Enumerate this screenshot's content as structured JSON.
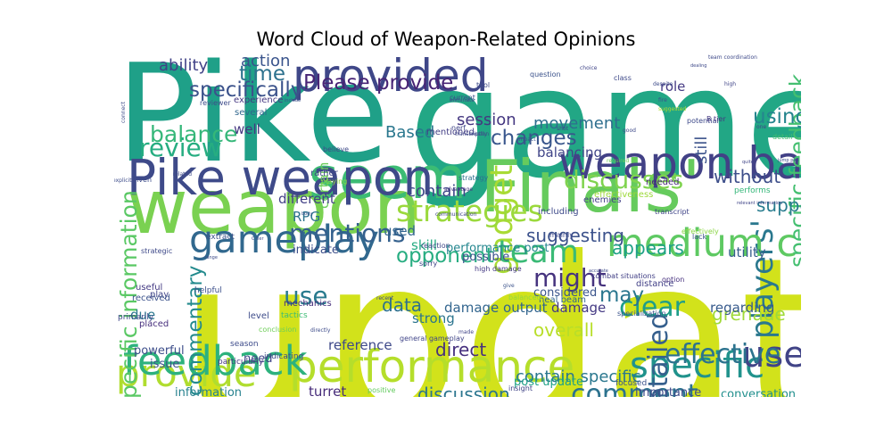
{
  "chart_data": {
    "type": "wordcloud",
    "title": "Word Cloud of Weapon-Related Opinions",
    "words": [
      {
        "text": "update",
        "weight": 1.0,
        "color": "#d2e21b"
      },
      {
        "text": "game",
        "weight": 0.93,
        "color": "#22a785"
      },
      {
        "text": "Pike",
        "weight": 0.86,
        "color": "#1fa088"
      },
      {
        "text": "weapon",
        "weight": 0.6,
        "color": "#7ad151"
      },
      {
        "text": "Finals'",
        "weight": 0.52,
        "color": "#66cb5d"
      },
      {
        "text": "performance",
        "weight": 0.5,
        "color": "#b5de2b"
      },
      {
        "text": "provide",
        "weight": 0.38,
        "color": "#b0dd2f"
      },
      {
        "text": "specific",
        "weight": 0.36,
        "color": "#20928c"
      },
      {
        "text": "players'",
        "weight": 0.3,
        "color": "#2a788e"
      },
      {
        "text": "seem",
        "weight": 0.26,
        "color": "#3cbc74"
      },
      {
        "text": "Pike weapon",
        "weight": 0.22,
        "color": "#3e4a89"
      },
      {
        "text": "weapon balancing",
        "weight": 0.2,
        "color": "#424186"
      },
      {
        "text": "provided",
        "weight": 0.2,
        "color": "#3f4788"
      },
      {
        "text": "feedback",
        "weight": 0.18,
        "color": "#2db27d"
      },
      {
        "text": "gameplay",
        "weight": 0.17,
        "color": "#31688e"
      },
      {
        "text": "medium class",
        "weight": 0.17,
        "color": "#5ec962"
      },
      {
        "text": "user",
        "weight": 0.16,
        "color": "#414487"
      },
      {
        "text": "gadget",
        "weight": 0.14,
        "color": "#a8db34"
      },
      {
        "text": "team",
        "weight": 0.14,
        "color": "#3aba76"
      },
      {
        "text": "strategies",
        "weight": 0.13,
        "color": "#9bd93c"
      },
      {
        "text": "comment",
        "weight": 0.12,
        "color": "#2c728e"
      },
      {
        "text": "detailed",
        "weight": 0.12,
        "color": "#355f8d"
      },
      {
        "text": "clear",
        "weight": 0.12,
        "color": "#1f9e89"
      },
      {
        "text": "effective",
        "weight": 0.12,
        "color": "#2c738e"
      },
      {
        "text": "review",
        "weight": 0.11,
        "color": "#26ad81"
      },
      {
        "text": "mentions",
        "weight": 0.11,
        "color": "#34608d"
      },
      {
        "text": "discusses",
        "weight": 0.11,
        "color": "#7fd34e"
      },
      {
        "text": "might",
        "weight": 0.11,
        "color": "#46337e"
      },
      {
        "text": "use",
        "weight": 0.11,
        "color": "#297b8e"
      },
      {
        "text": "balance",
        "weight": 0.1,
        "color": "#35b779"
      },
      {
        "text": "specific information",
        "weight": 0.1,
        "color": "#5ac864"
      },
      {
        "text": "specific feedback",
        "weight": 0.1,
        "color": "#44bf70"
      },
      {
        "text": "commentary",
        "weight": 0.09,
        "color": "#238a8d"
      },
      {
        "text": "Please provide",
        "weight": 0.09,
        "color": "#482475"
      },
      {
        "text": "time",
        "weight": 0.09,
        "color": "#2d718e"
      },
      {
        "text": "specifically",
        "weight": 0.09,
        "color": "#3b528b"
      },
      {
        "text": "changes",
        "weight": 0.09,
        "color": "#39568c"
      },
      {
        "text": "using",
        "weight": 0.09,
        "color": "#25858e"
      },
      {
        "text": "may",
        "weight": 0.09,
        "color": "#2a768e"
      },
      {
        "text": "opponent",
        "weight": 0.09,
        "color": "#27ad81"
      },
      {
        "text": "suggesting",
        "weight": 0.08,
        "color": "#3b518b"
      },
      {
        "text": "appears",
        "weight": 0.08,
        "color": "#1fa187"
      },
      {
        "text": "without",
        "weight": 0.08,
        "color": "#3d4e8a"
      },
      {
        "text": "support",
        "weight": 0.08,
        "color": "#287c8e"
      },
      {
        "text": "grenade",
        "weight": 0.08,
        "color": "#a0da39"
      },
      {
        "text": "overall",
        "weight": 0.08,
        "color": "#b8de29"
      },
      {
        "text": "data",
        "weight": 0.08,
        "color": "#2d708e"
      },
      {
        "text": "direct",
        "weight": 0.08,
        "color": "#46307e"
      },
      {
        "text": "discussion",
        "weight": 0.08,
        "color": "#2b758e"
      },
      {
        "text": "contain",
        "weight": 0.07,
        "color": "#3f4889"
      },
      {
        "text": "contain specific",
        "weight": 0.07,
        "color": "#2a778e"
      },
      {
        "text": "ability",
        "weight": 0.07,
        "color": "#414287"
      },
      {
        "text": "action",
        "weight": 0.07,
        "color": "#3a548c"
      },
      {
        "text": "session",
        "weight": 0.07,
        "color": "#453781"
      },
      {
        "text": "movement",
        "weight": 0.07,
        "color": "#2e6e8e"
      },
      {
        "text": "balancing",
        "weight": 0.06,
        "color": "#404588"
      },
      {
        "text": "role",
        "weight": 0.06,
        "color": "#443983"
      },
      {
        "text": "still",
        "weight": 0.07,
        "color": "#3b528b"
      },
      {
        "text": "Based",
        "weight": 0.07,
        "color": "#2a778e"
      },
      {
        "text": "certain",
        "weight": 0.06,
        "color": "#6ccd5a"
      },
      {
        "text": "well",
        "weight": 0.06,
        "color": "#453781"
      },
      {
        "text": "different",
        "weight": 0.06,
        "color": "#424086"
      },
      {
        "text": "RPG",
        "weight": 0.06,
        "color": "#2c728e"
      },
      {
        "text": "used",
        "weight": 0.06,
        "color": "#32658e"
      },
      {
        "text": "skill",
        "weight": 0.06,
        "color": "#25ab82"
      },
      {
        "text": "indicate",
        "weight": 0.05,
        "color": "#3c4f8a"
      },
      {
        "text": "utility",
        "weight": 0.06,
        "color": "#355e8d"
      },
      {
        "text": "damage",
        "weight": 0.06,
        "color": "#443983"
      },
      {
        "text": "damage output",
        "weight": 0.06,
        "color": "#32658e"
      },
      {
        "text": "strong",
        "weight": 0.06,
        "color": "#2b748e"
      },
      {
        "text": "considered",
        "weight": 0.05,
        "color": "#3a548c"
      },
      {
        "text": "regarding",
        "weight": 0.06,
        "color": "#375a8c"
      },
      {
        "text": "due",
        "weight": 0.06,
        "color": "#2a778e"
      },
      {
        "text": "reference",
        "weight": 0.06,
        "color": "#3e4989"
      },
      {
        "text": "need",
        "weight": 0.05,
        "color": "#404588"
      },
      {
        "text": "suggest",
        "weight": 0.05,
        "color": "#3f4889"
      },
      {
        "text": "turret",
        "weight": 0.06,
        "color": "#472c7a"
      },
      {
        "text": "information",
        "weight": 0.05,
        "color": "#26818e"
      },
      {
        "text": "post update",
        "weight": 0.05,
        "color": "#1fa187"
      },
      {
        "text": "conversation",
        "weight": 0.05,
        "color": "#218f8d"
      },
      {
        "text": "importance",
        "weight": 0.05,
        "color": "#3e4c8a"
      },
      {
        "text": "issue",
        "weight": 0.05,
        "color": "#3b528b"
      },
      {
        "text": "powerful",
        "weight": 0.05,
        "color": "#3d4e8a"
      },
      {
        "text": "placed",
        "weight": 0.04,
        "color": "#472f7d"
      },
      {
        "text": "level",
        "weight": 0.04,
        "color": "#3e4c8a"
      },
      {
        "text": "play",
        "weight": 0.04,
        "color": "#404588"
      },
      {
        "text": "mechanics",
        "weight": 0.04,
        "color": "#462f7c"
      },
      {
        "text": "performance post",
        "weight": 0.05,
        "color": "#24868e"
      },
      {
        "text": "possible",
        "weight": 0.05,
        "color": "#3b528b"
      },
      {
        "text": "mentioned",
        "weight": 0.04,
        "color": "#433e85"
      },
      {
        "text": "rather",
        "weight": 0.04,
        "color": "#3f4788"
      },
      {
        "text": "several",
        "weight": 0.04,
        "color": "#31678e"
      },
      {
        "text": "experience",
        "weight": 0.04,
        "color": "#453781"
      },
      {
        "text": "including",
        "weight": 0.04,
        "color": "#3e4a89"
      },
      {
        "text": "enemies",
        "weight": 0.04,
        "color": "#424086"
      },
      {
        "text": "needed",
        "weight": 0.04,
        "color": "#482878"
      },
      {
        "text": "effectiveness",
        "weight": 0.04,
        "color": "#9dd93b"
      },
      {
        "text": "heal beam",
        "weight": 0.04,
        "color": "#32658e"
      },
      {
        "text": "distance",
        "weight": 0.04,
        "color": "#424086"
      },
      {
        "text": "useful",
        "weight": 0.04,
        "color": "#443a83"
      },
      {
        "text": "received",
        "weight": 0.04,
        "color": "#3b528b"
      },
      {
        "text": "primarily",
        "weight": 0.035,
        "color": "#3e4989"
      },
      {
        "text": "tactics",
        "weight": 0.035,
        "color": "#3dbc74"
      },
      {
        "text": "helpful",
        "weight": 0.035,
        "color": "#3c4f8a"
      },
      {
        "text": "strategic",
        "weight": 0.03,
        "color": "#3e4989"
      },
      {
        "text": "extract",
        "weight": 0.035,
        "color": "#3b528b"
      },
      {
        "text": "season",
        "weight": 0.035,
        "color": "#3e4c8a"
      },
      {
        "text": "positive",
        "weight": 0.03,
        "color": "#63cb5f"
      },
      {
        "text": "particularly",
        "weight": 0.035,
        "color": "#453882"
      },
      {
        "text": "indicating",
        "weight": 0.035,
        "color": "#3e4c8a"
      },
      {
        "text": "general gameplay",
        "weight": 0.03,
        "color": "#404588"
      },
      {
        "text": "insight",
        "weight": 0.03,
        "color": "#414487"
      },
      {
        "text": "focused",
        "weight": 0.035,
        "color": "#3b528b"
      },
      {
        "text": "performs",
        "weight": 0.035,
        "color": "#35b779"
      },
      {
        "text": "effectively",
        "weight": 0.03,
        "color": "#8bd646"
      },
      {
        "text": "transcript",
        "weight": 0.03,
        "color": "#404588"
      },
      {
        "text": "mainly",
        "weight": 0.03,
        "color": "#3e4989"
      },
      {
        "text": "lack",
        "weight": 0.03,
        "color": "#3b528b"
      },
      {
        "text": "reaction",
        "weight": 0.03,
        "color": "#3f4788"
      },
      {
        "text": "communication",
        "weight": 0.025,
        "color": "#404588"
      },
      {
        "text": "strategy",
        "weight": 0.03,
        "color": "#2d718e"
      },
      {
        "text": "believe",
        "weight": 0.03,
        "color": "#3e4a89"
      },
      {
        "text": "playing",
        "weight": 0.03,
        "color": "#8fd744"
      },
      {
        "text": "given",
        "weight": 0.03,
        "color": "#3e4c8a"
      },
      {
        "text": "combat situations",
        "weight": 0.03,
        "color": "#424086"
      },
      {
        "text": "option",
        "weight": 0.03,
        "color": "#46307e"
      },
      {
        "text": "specialization",
        "weight": 0.03,
        "color": "#3b528b"
      },
      {
        "text": "sorry",
        "weight": 0.03,
        "color": "#404588"
      },
      {
        "text": "high damage",
        "weight": 0.03,
        "color": "#443983"
      },
      {
        "text": "balanced",
        "weight": 0.03,
        "color": "#90d743"
      },
      {
        "text": "conclusion",
        "weight": 0.03,
        "color": "#6ece58"
      },
      {
        "text": "directly",
        "weight": 0.025,
        "color": "#3e4c8a"
      },
      {
        "text": "give",
        "weight": 0.025,
        "color": "#3b528b"
      },
      {
        "text": "made",
        "weight": 0.025,
        "color": "#404588"
      },
      {
        "text": "recent",
        "weight": 0.025,
        "color": "#3e4989"
      },
      {
        "text": "advantage",
        "weight": 0.025,
        "color": "#453781"
      },
      {
        "text": "connect",
        "weight": 0.025,
        "color": "#3e4c8a"
      },
      {
        "text": "eliminate",
        "weight": 0.025,
        "color": "#404588"
      },
      {
        "text": "tool",
        "weight": 0.03,
        "color": "#3e4a89"
      },
      {
        "text": "question",
        "weight": 0.03,
        "color": "#3b528b"
      },
      {
        "text": "choice",
        "weight": 0.025,
        "color": "#404588"
      },
      {
        "text": "class",
        "weight": 0.03,
        "color": "#3e4989"
      },
      {
        "text": "suggested",
        "weight": 0.025,
        "color": "#b0dd2f"
      },
      {
        "text": "despite",
        "weight": 0.025,
        "color": "#3e4c8a"
      },
      {
        "text": "team coordination",
        "weight": 0.025,
        "color": "#3e4989"
      },
      {
        "text": "high",
        "weight": 0.025,
        "color": "#404588"
      },
      {
        "text": "fire",
        "weight": 0.025,
        "color": "#3b528b"
      },
      {
        "text": "potential",
        "weight": 0.03,
        "color": "#3e4a89"
      },
      {
        "text": "B tier",
        "weight": 0.03,
        "color": "#453781"
      },
      {
        "text": "reviewer",
        "weight": 0.03,
        "color": "#3e4c8a"
      },
      {
        "text": "current",
        "weight": 0.03,
        "color": "#3b528b"
      },
      {
        "text": "nerf",
        "weight": 0.03,
        "color": "#404588"
      },
      {
        "text": "transcription",
        "weight": 0.025,
        "color": "#3e4989"
      },
      {
        "text": "mostly",
        "weight": 0.025,
        "color": "#3e4c8a"
      },
      {
        "text": "shot",
        "weight": 0.025,
        "color": "#404588"
      },
      {
        "text": "impact",
        "weight": 0.025,
        "color": "#3b528b"
      },
      {
        "text": "good",
        "weight": 0.025,
        "color": "#3e4a89"
      },
      {
        "text": "required",
        "weight": 0.025,
        "color": "#6ece58"
      },
      {
        "text": "explicit",
        "weight": 0.025,
        "color": "#3e4c8a"
      },
      {
        "text": "one",
        "weight": 0.025,
        "color": "#404588"
      },
      {
        "text": "detail",
        "weight": 0.03,
        "color": "#44bf70"
      },
      {
        "text": "dealing",
        "weight": 0.02,
        "color": "#3e4989"
      },
      {
        "text": "jump pad",
        "weight": 0.02,
        "color": "#3e4c8a"
      },
      {
        "text": "quite",
        "weight": 0.02,
        "color": "#404588"
      },
      {
        "text": "body",
        "weight": 0.02,
        "color": "#3b528b"
      },
      {
        "text": "C tier",
        "weight": 0.02,
        "color": "#3e4989"
      },
      {
        "text": "accurate",
        "weight": 0.02,
        "color": "#3e4c8a"
      },
      {
        "text": "relevant information",
        "weight": 0.02,
        "color": "#404588"
      },
      {
        "text": "include",
        "weight": 0.02,
        "color": "#3b528b"
      },
      {
        "text": "related",
        "weight": 0.025,
        "color": "#3e4a89"
      },
      {
        "text": "range",
        "weight": 0.02,
        "color": "#3e4c8a"
      }
    ]
  }
}
